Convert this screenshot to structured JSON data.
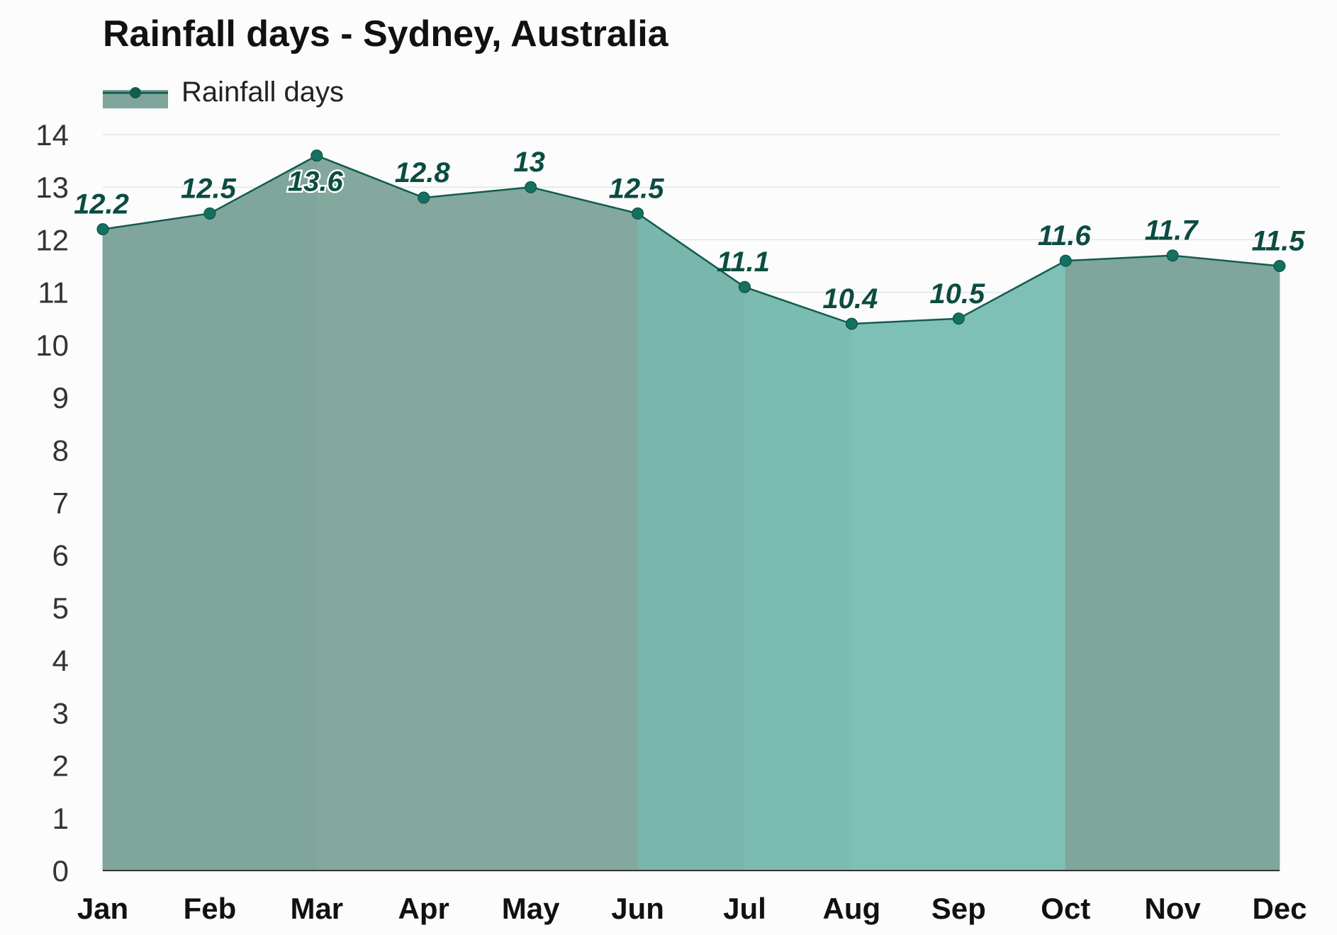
{
  "chart_data": {
    "type": "area",
    "title": "Rainfall days - Sydney, Australia",
    "xlabel": "",
    "ylabel": "",
    "categories": [
      "Jan",
      "Feb",
      "Mar",
      "Apr",
      "May",
      "Jun",
      "Jul",
      "Aug",
      "Sep",
      "Oct",
      "Nov",
      "Dec"
    ],
    "series": [
      {
        "name": "Rainfall days",
        "values": [
          12.2,
          12.5,
          13.6,
          12.8,
          13,
          12.5,
          11.1,
          10.4,
          10.5,
          11.6,
          11.7,
          11.5
        ]
      }
    ],
    "value_labels": [
      "12.2",
      "12.5",
      "13.6",
      "12.8",
      "13",
      "12.5",
      "11.1",
      "10.4",
      "10.5",
      "11.6",
      "11.7",
      "11.5"
    ],
    "ylim": [
      0,
      14
    ],
    "yticks": [
      "0",
      "1",
      "2",
      "3",
      "4",
      "5",
      "6",
      "7",
      "8",
      "9",
      "10",
      "11",
      "12",
      "13",
      "14"
    ],
    "grid": true,
    "legend_position": "top-left",
    "colors": {
      "line": "#115c50",
      "marker": "#14705f",
      "label": "#0c4c42",
      "fill_default": "#7fa59c",
      "season_fills": [
        "#7fa59c",
        "#7fa59c",
        "#84a89d",
        "#84a89d",
        "#84a89d",
        "#79b6ac",
        "#7cbbb1",
        "#7ec0b6",
        "#7ec0b6",
        "#7fa59c",
        "#7fa59c",
        "#7fa59c"
      ]
    }
  }
}
